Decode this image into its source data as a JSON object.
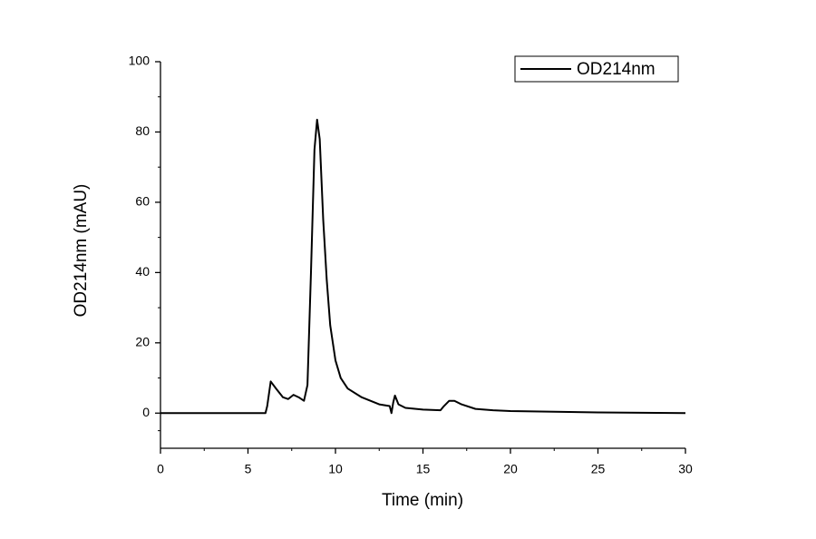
{
  "chart_data": {
    "type": "line",
    "x_label": "Time (min)",
    "y_label": "OD214nm (mAU)",
    "x": [
      0,
      6.0,
      6.1,
      6.3,
      6.6,
      7.0,
      7.3,
      7.6,
      7.9,
      8.2,
      8.4,
      8.6,
      8.8,
      8.95,
      9.1,
      9.3,
      9.5,
      9.7,
      10.0,
      10.3,
      10.7,
      11.5,
      12.5,
      13.1,
      13.2,
      13.3,
      13.4,
      13.6,
      14.0,
      15.0,
      16.0,
      16.2,
      16.5,
      16.8,
      17.2,
      18.0,
      19.0,
      20.0,
      25.0,
      30.0
    ],
    "series": [
      {
        "name": "OD214nm",
        "color": "#000000",
        "values": [
          0,
          0,
          2,
          9,
          7,
          4.5,
          4,
          5.2,
          4.5,
          3.5,
          8,
          40,
          75,
          83.5,
          78,
          55,
          38,
          25,
          15,
          10,
          7,
          4.5,
          2.5,
          2,
          0,
          3,
          5,
          2.5,
          1.5,
          1,
          0.8,
          2,
          3.5,
          3.5,
          2.5,
          1.2,
          0.8,
          0.6,
          0.2,
          0
        ]
      }
    ],
    "xlim": [
      0,
      30
    ],
    "xticks": [
      0,
      5,
      10,
      15,
      20,
      25,
      30
    ],
    "ylim": [
      -10,
      100
    ],
    "yticks": [
      0,
      20,
      40,
      60,
      80,
      100
    ],
    "grid": false,
    "legend": "upper right"
  }
}
